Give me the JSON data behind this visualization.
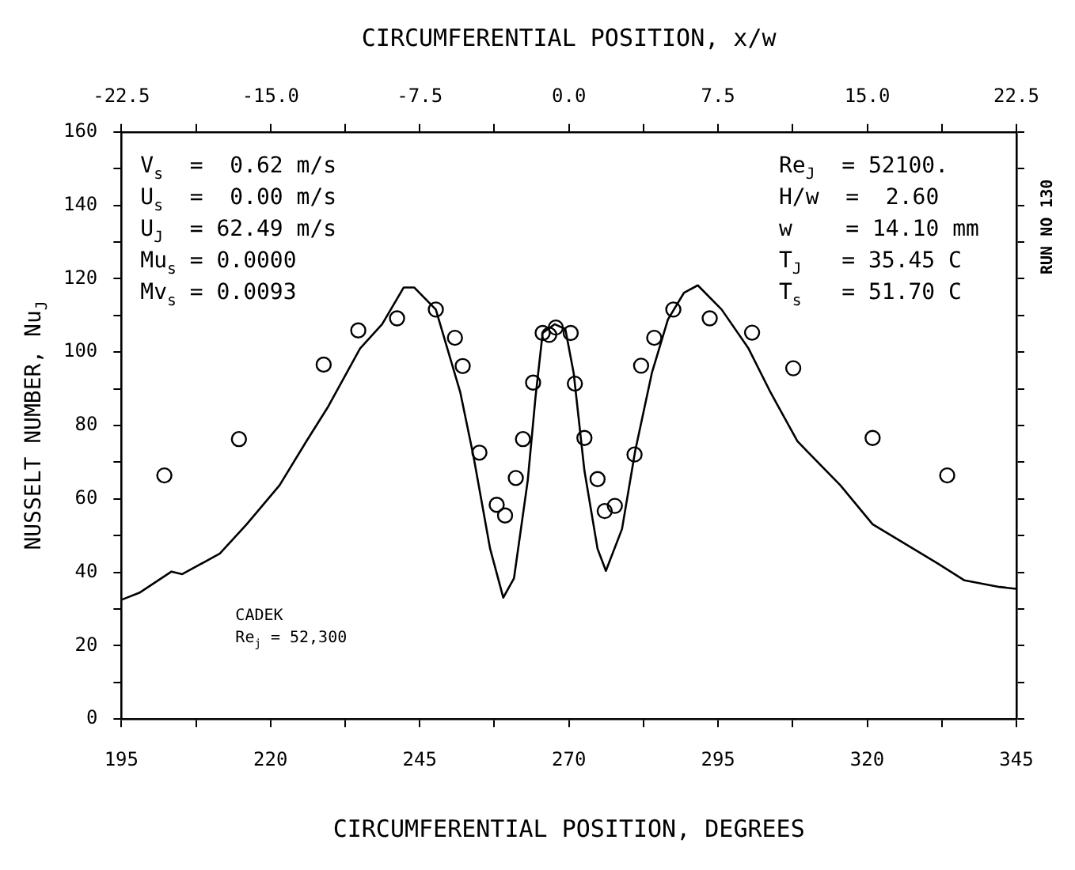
{
  "chart_data": {
    "type": "line",
    "xlabel": "CIRCUMFERENTIAL POSITION, DEGREES",
    "x2label": "CIRCUMFERENTIAL POSITION, x/w",
    "ylabel": "NUSSELT NUMBER, Nu$_{J}$",
    "xlim": [
      195,
      345
    ],
    "xticks": [
      195,
      {
        "value": 207.5,
        "label": null
      },
      220,
      {
        "value": 232.5,
        "label": null
      },
      245,
      {
        "value": 257.5,
        "label": null
      },
      270,
      {
        "value": 282.5,
        "label": null
      },
      295,
      {
        "value": 307.5,
        "label": null
      },
      320,
      {
        "value": 332.5,
        "label": null
      },
      345
    ],
    "x2lim": [
      -22.5,
      22.5
    ],
    "x2ticks": [
      -22.5,
      {
        "value": -18.75,
        "label": null
      },
      {
        "value": -15,
        "label": "-15.0"
      },
      {
        "value": -11.25,
        "label": null
      },
      -7.5,
      {
        "value": -3.75,
        "label": null
      },
      {
        "value": 0,
        "label": "0.0"
      },
      {
        "value": 3.75,
        "label": null
      },
      7.5,
      {
        "value": 11.25,
        "label": null
      },
      {
        "value": 15,
        "label": "15.0"
      },
      {
        "value": 18.75,
        "label": null
      },
      22.5
    ],
    "ylim": [
      0,
      160
    ],
    "yticks": [
      0,
      {
        "value": 10,
        "label": null
      },
      20,
      {
        "value": 30,
        "label": null
      },
      40,
      {
        "value": 50,
        "label": null
      },
      60,
      {
        "value": 70,
        "label": null
      },
      80,
      {
        "value": 90,
        "label": null
      },
      100,
      {
        "value": 110,
        "label": null
      },
      120,
      {
        "value": 130,
        "label": null
      },
      140,
      {
        "value": 150,
        "label": null
      },
      160
    ],
    "grid": false,
    "legend": false,
    "series": [
      {
        "type": "line",
        "color": "#000000",
        "marker": "none",
        "line_style": "solid",
        "x": [
          195,
          198,
          203.4,
          205.2,
          211.5,
          216,
          221.5,
          226,
          229.6,
          235,
          238.7,
          242.3,
          244.1,
          247.7,
          251.8,
          254,
          256.8,
          259,
          260.8,
          263.1,
          264.4,
          265.6,
          267.6,
          269.4,
          270.8,
          272.6,
          274.8,
          276.2,
          278.9,
          281.1,
          283.9,
          286.6,
          289.3,
          291.6,
          295.6,
          300.1,
          303.8,
          308.3,
          315.5,
          320.9,
          326.3,
          331.8,
          336.3,
          342.2,
          345
        ],
        "values": [
          32.5,
          34.4,
          40.2,
          39.5,
          45.1,
          53.1,
          63.7,
          75.7,
          85,
          101,
          107.6,
          117.6,
          117.6,
          111.6,
          89,
          71.7,
          46.4,
          33.1,
          38.4,
          65,
          87.7,
          105.2,
          107.6,
          106.3,
          94.3,
          67.7,
          46.4,
          40.4,
          51.8,
          73,
          94.3,
          108.9,
          116.2,
          118.2,
          111.6,
          101,
          89,
          75.7,
          63.7,
          53.1,
          47.8,
          42.4,
          37.8,
          36,
          35.5
        ]
      },
      {
        "type": "scatter",
        "color": "#000000",
        "marker": "circle",
        "x": [
          202.2,
          214.7,
          228.9,
          234.7,
          241.2,
          247.7,
          250.9,
          252.2,
          255,
          257.9,
          259.3,
          261.1,
          262.3,
          264,
          265.6,
          266.7,
          267.8,
          270.3,
          271,
          272.6,
          274.8,
          276,
          277.7,
          281,
          282.1,
          284.3,
          287.5,
          293.6,
          300.7,
          307.6,
          320.9,
          333.4
        ],
        "values": [
          66.4,
          76.3,
          96.6,
          105.9,
          109.2,
          111.6,
          103.9,
          96.2,
          72.6,
          58.4,
          55.5,
          65.7,
          76.3,
          91.7,
          105.2,
          104.7,
          106.7,
          105.2,
          91.4,
          76.6,
          65.4,
          56.7,
          58.1,
          72.1,
          96.3,
          103.9,
          111.6,
          109.2,
          105.3,
          95.6,
          76.6,
          66.4
        ]
      }
    ],
    "annotations": [
      "V$_{s}$  =  0.62 m/s",
      "U$_{s}$  =  0.00 m/s",
      "U$_{J}$  = 62.49 m/s",
      "Mu$_{s}$ = 0.0000",
      "Mv$_{s}$ = 0.0093",
      "Re$_{J}$  = 52100.",
      "H/w  =  2.60",
      "w    = 14.10 mm",
      "T$_{J}$   = 35.45 C",
      "T$_{s}$   = 51.70 C",
      "RUN NO 130",
      "CADEK",
      "Re$_{j}$ = 52,300"
    ]
  }
}
